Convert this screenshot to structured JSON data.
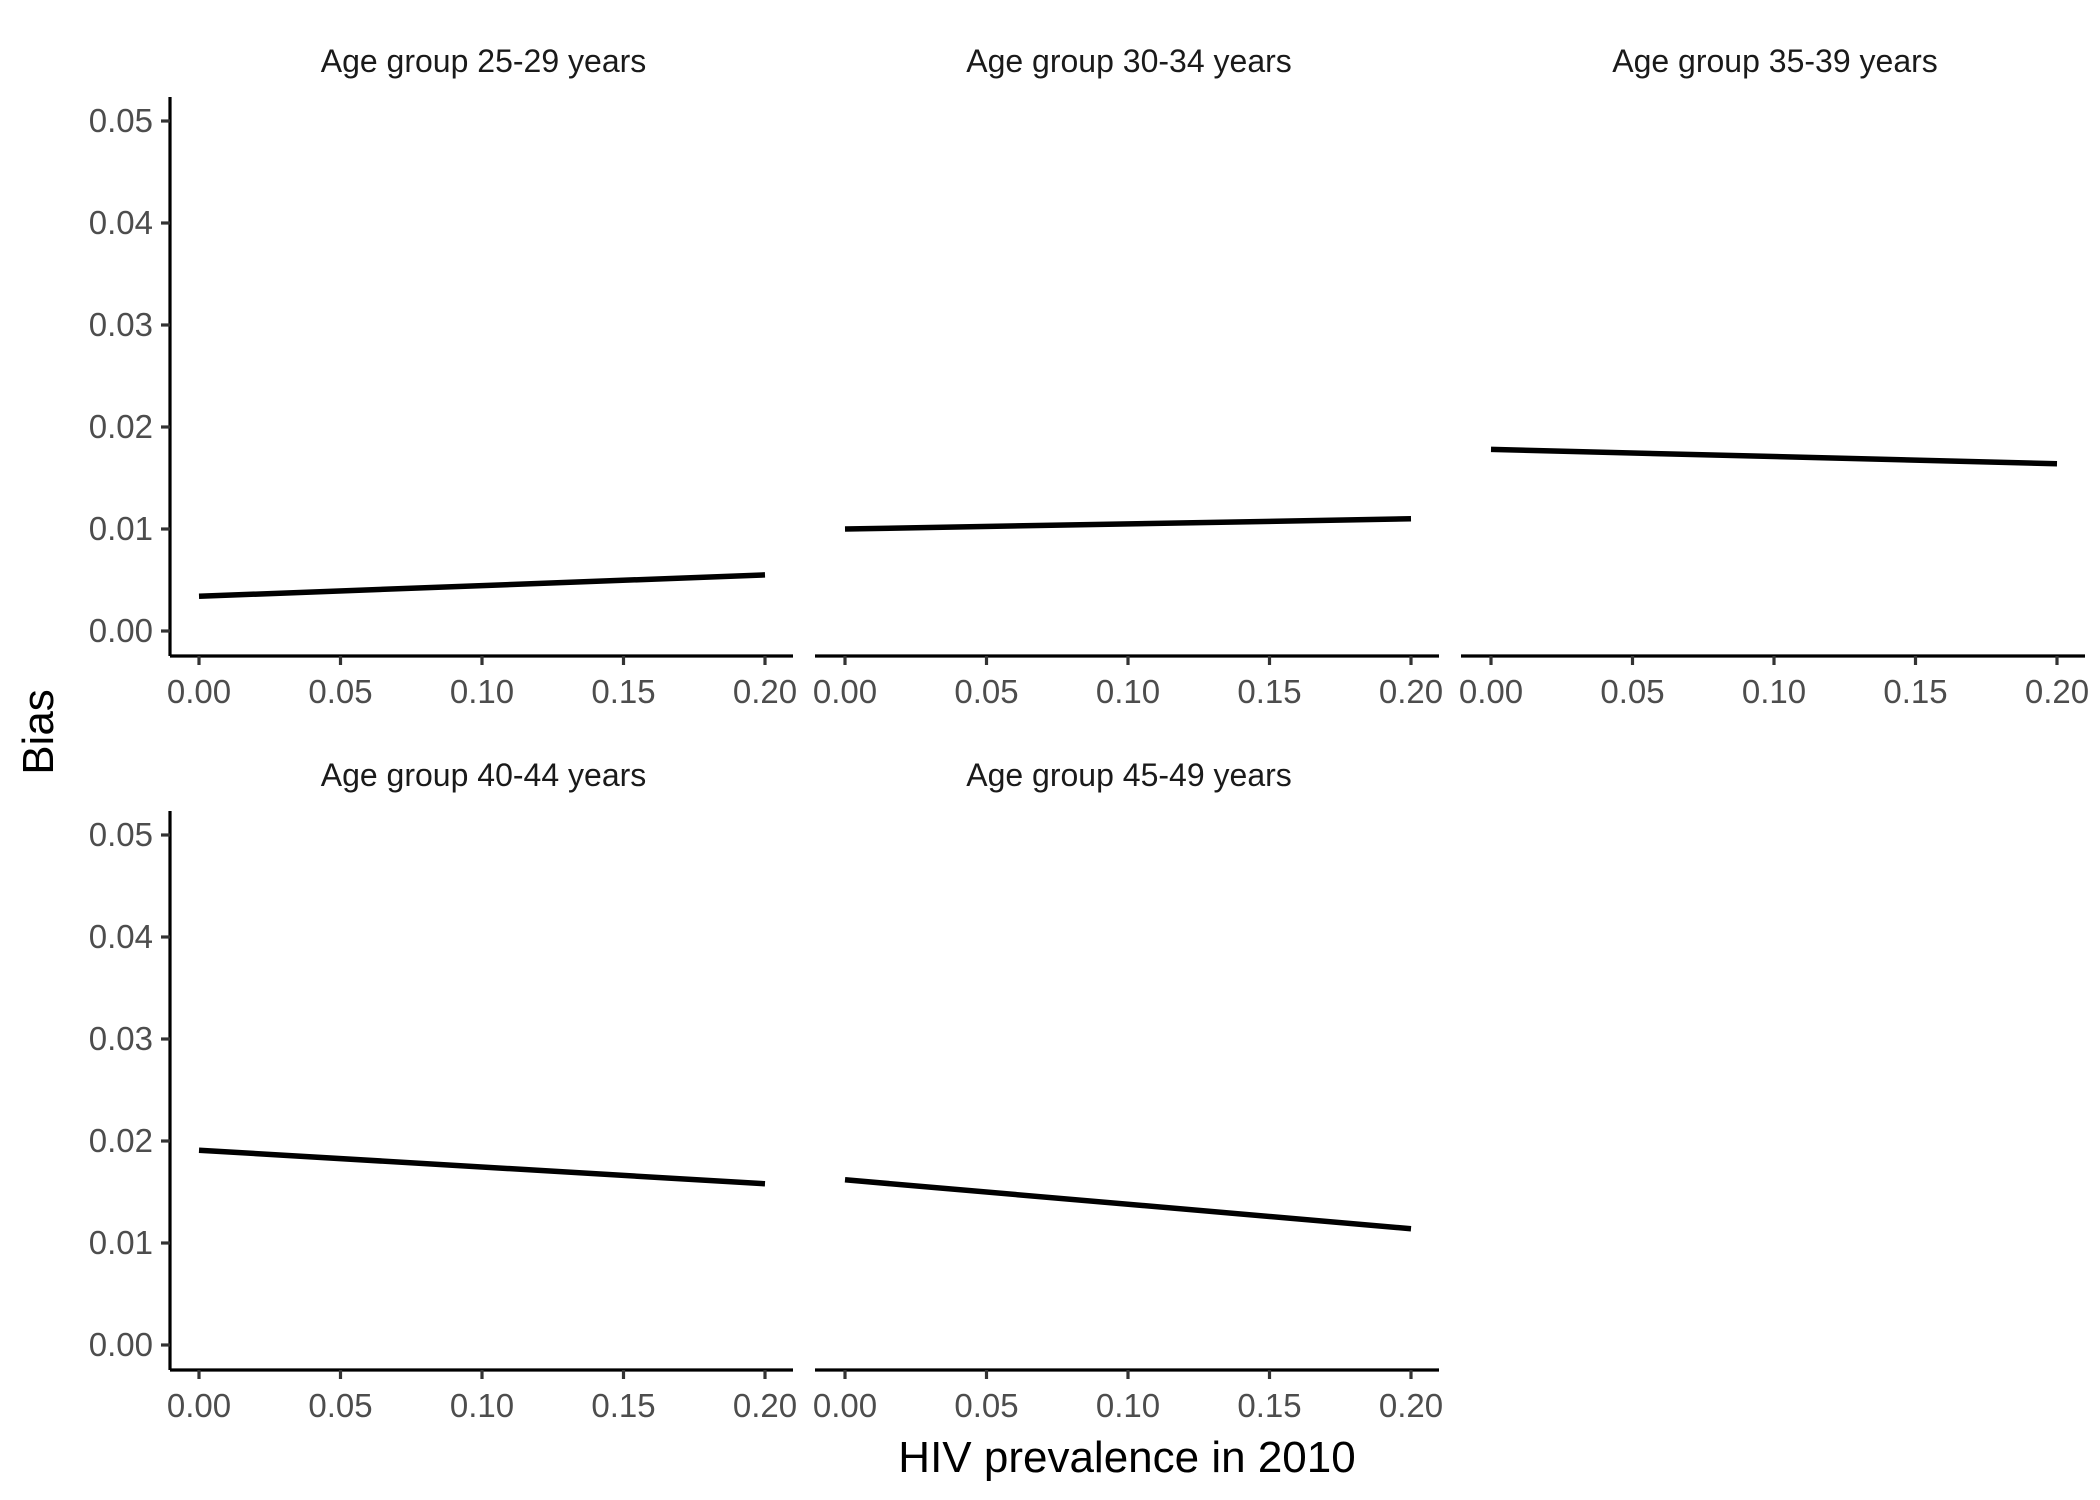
{
  "chart_data": {
    "type": "line",
    "layout": "faceted",
    "xlabel": "HIV prevalence in 2010",
    "ylabel": "Bias",
    "xlim": [
      0,
      0.2
    ],
    "ylim": [
      0,
      0.05
    ],
    "x_ticks": [
      "0.00",
      "0.05",
      "0.10",
      "0.15",
      "0.20"
    ],
    "y_ticks": [
      "0.00",
      "0.01",
      "0.02",
      "0.03",
      "0.04",
      "0.05"
    ],
    "grid": false,
    "line_color": "#000000",
    "panels": [
      {
        "title": "Age group 25-29 years",
        "x": [
          0.0,
          0.2
        ],
        "y": [
          0.0034,
          0.0055
        ]
      },
      {
        "title": "Age group 30-34 years",
        "x": [
          0.0,
          0.2
        ],
        "y": [
          0.01,
          0.011
        ]
      },
      {
        "title": "Age group 35-39 years",
        "x": [
          0.0,
          0.2
        ],
        "y": [
          0.0178,
          0.0164
        ]
      },
      {
        "title": "Age group 40-44 years",
        "x": [
          0.0,
          0.2
        ],
        "y": [
          0.0191,
          0.0158
        ]
      },
      {
        "title": "Age group 45-49 years",
        "x": [
          0.0,
          0.2
        ],
        "y": [
          0.0162,
          0.0114
        ]
      }
    ]
  }
}
